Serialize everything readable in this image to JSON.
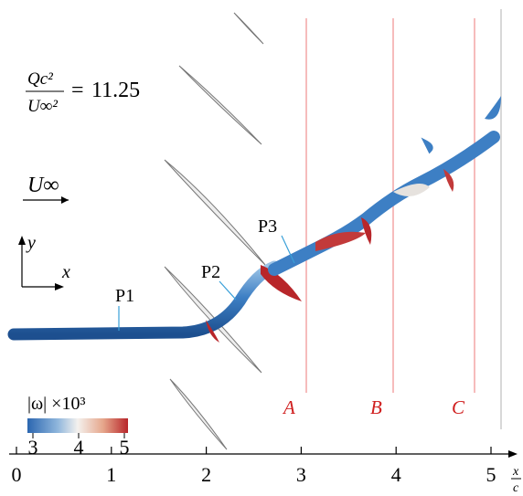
{
  "equation": {
    "numerator": "Qc²",
    "denominator": "U∞²",
    "relation": "=",
    "value": 11.25
  },
  "freestream_label": "U∞",
  "axes_icon": {
    "y": "y",
    "x": "x"
  },
  "probes": [
    "P1",
    "P2",
    "P3"
  ],
  "planes": [
    "A",
    "B",
    "C"
  ],
  "colorbar": {
    "label": "|ω| ×10³",
    "ticks": [
      3,
      4,
      5
    ]
  },
  "x_axis": {
    "ticks": [
      0,
      1,
      2,
      3,
      4,
      5
    ],
    "label_num": "x",
    "label_den": "c"
  }
}
